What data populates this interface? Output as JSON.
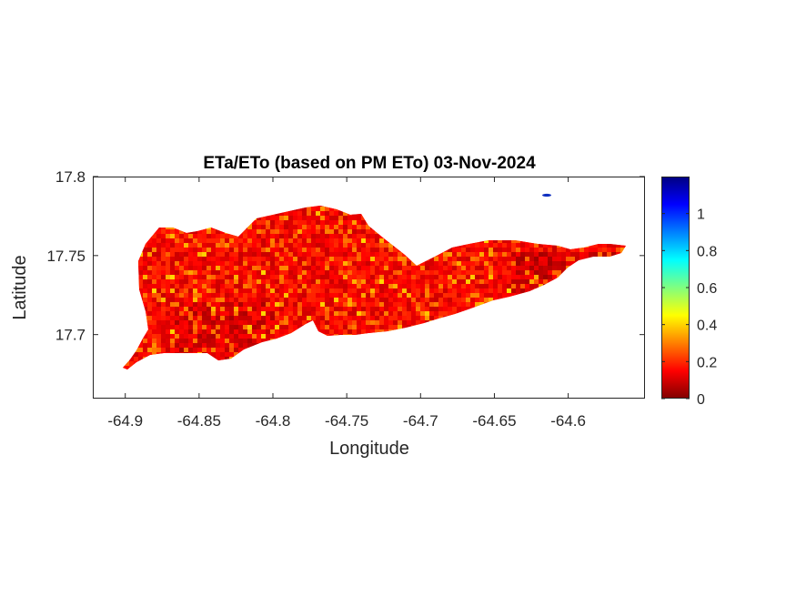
{
  "chart_data": {
    "type": "heatmap",
    "title": "ETa/ETo (based on PM ETo) 03-Nov-2024",
    "xlabel": "Longitude",
    "ylabel": "Latitude",
    "xlim": [
      -64.922,
      -64.548
    ],
    "ylim": [
      17.6595,
      17.8
    ],
    "xticks": [
      -64.9,
      -64.85,
      -64.8,
      -64.75,
      -64.7,
      -64.65,
      -64.6
    ],
    "xtick_labels": [
      "-64.9",
      "-64.85",
      "-64.8",
      "-64.75",
      "-64.7",
      "-64.65",
      "-64.6"
    ],
    "yticks": [
      17.7,
      17.75,
      17.8
    ],
    "ytick_labels": [
      "17.7",
      "17.75",
      "17.8"
    ],
    "colorbar": {
      "colormap": "jet",
      "range": [
        0,
        1.2
      ],
      "ticks": [
        0,
        0.2,
        0.4,
        0.6,
        0.8,
        1
      ],
      "tick_labels": [
        "0",
        "0.2",
        "0.4",
        "0.6",
        "0.8",
        "1"
      ]
    },
    "grid": false
  }
}
